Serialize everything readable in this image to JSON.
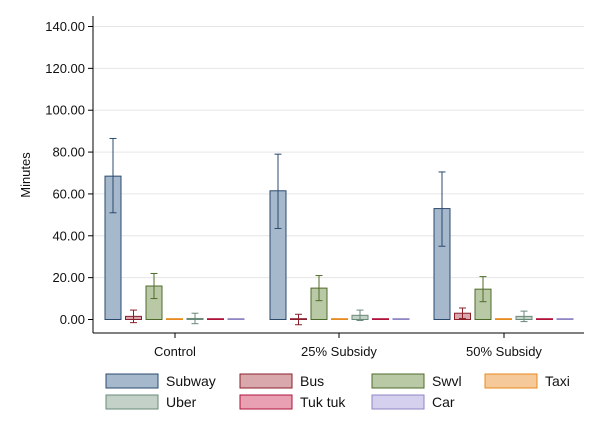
{
  "chart_data": {
    "type": "bar",
    "ylabel": "Minutes",
    "xlabel": "",
    "ylim": [
      0,
      145
    ],
    "yticks": [
      0,
      20,
      40,
      60,
      80,
      100,
      120,
      140
    ],
    "ytick_labels": [
      "0.00",
      "20.00",
      "40.00",
      "60.00",
      "80.00",
      "100.00",
      "120.00",
      "140.00"
    ],
    "grid": true,
    "legend_position": "bottom",
    "categories": [
      "Control",
      "25% Subsidy",
      "50% Subsidy"
    ],
    "series": [
      {
        "name": "Subway",
        "fill": "#a6b8cc",
        "stroke": "#2b4a6e",
        "values": [
          68.5,
          61.5,
          53.0
        ],
        "ci_low": [
          51.0,
          43.5,
          35.0
        ],
        "ci_high": [
          86.5,
          79.0,
          70.5
        ]
      },
      {
        "name": "Bus",
        "fill": "#d9a8ad",
        "stroke": "#8a1f2b",
        "values": [
          1.5,
          0.0,
          3.0
        ],
        "ci_low": [
          -1.5,
          -2.5,
          0.5
        ],
        "ci_high": [
          4.5,
          2.5,
          5.5
        ]
      },
      {
        "name": "Swvl",
        "fill": "#b9c9a6",
        "stroke": "#4f6b2a",
        "values": [
          16.0,
          15.0,
          14.5
        ],
        "ci_low": [
          10.0,
          9.0,
          8.5
        ],
        "ci_high": [
          22.0,
          21.0,
          20.5
        ]
      },
      {
        "name": "Taxi",
        "fill": "#f5c99a",
        "stroke": "#e8891e",
        "values": [
          0.0,
          0.0,
          0.0
        ],
        "ci_low": [
          0.0,
          0.0,
          0.0
        ],
        "ci_high": [
          0.0,
          0.0,
          0.0
        ]
      },
      {
        "name": "Uber",
        "fill": "#c3d1c8",
        "stroke": "#6a8a78",
        "values": [
          0.5,
          2.0,
          1.5
        ],
        "ci_low": [
          -2.0,
          -0.5,
          -1.0
        ],
        "ci_high": [
          3.0,
          4.5,
          4.0
        ]
      },
      {
        "name": "Tuk tuk",
        "fill": "#e9a0b3",
        "stroke": "#b0123a",
        "values": [
          0.0,
          0.0,
          0.0
        ],
        "ci_low": [
          0.0,
          0.0,
          0.0
        ],
        "ci_high": [
          0.0,
          0.0,
          0.0
        ]
      },
      {
        "name": "Car",
        "fill": "#d6d0ef",
        "stroke": "#8f86c4",
        "values": [
          0.0,
          0.0,
          0.0
        ],
        "ci_low": [
          0.0,
          0.0,
          0.0
        ],
        "ci_high": [
          0.0,
          0.0,
          0.0
        ]
      }
    ]
  }
}
